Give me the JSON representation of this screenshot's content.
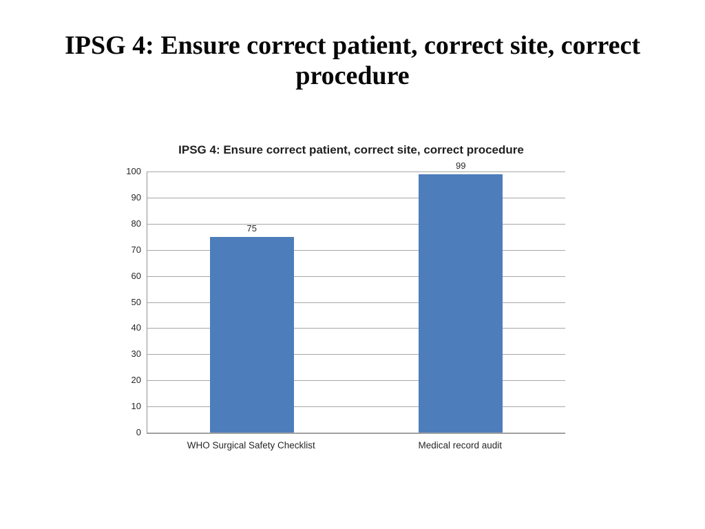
{
  "slide": {
    "title": "IPSG 4: Ensure correct patient, correct site, correct procedure"
  },
  "chart_data": {
    "type": "bar",
    "title": "IPSG 4: Ensure correct patient, correct site, correct procedure",
    "categories": [
      "WHO Surgical Safety Checklist",
      "Medical record audit"
    ],
    "values": [
      75,
      99
    ],
    "data_labels": [
      "75",
      "99"
    ],
    "xlabel": "",
    "ylabel": "",
    "ylim": [
      0,
      100
    ],
    "yticks": [
      0,
      10,
      20,
      30,
      40,
      50,
      60,
      70,
      80,
      90,
      100
    ],
    "grid": true,
    "legend": false,
    "colors": {
      "bar_fill": "#4d7ebb",
      "gridline": "#a6a6a6",
      "axis_line": "#a0a0a0",
      "chart_text": "#262626",
      "title_text": "#070707"
    }
  }
}
